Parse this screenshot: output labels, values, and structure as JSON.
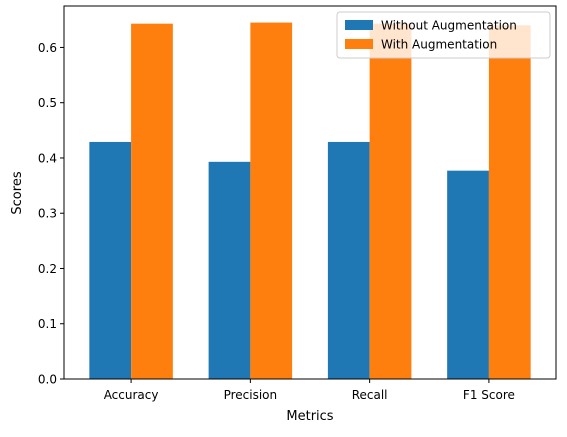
{
  "chart_data": {
    "type": "bar",
    "categories": [
      "Accuracy",
      "Precision",
      "Recall",
      "F1 Score"
    ],
    "series": [
      {
        "name": "Without Augmentation",
        "color": "#1f77b4",
        "values": [
          0.429,
          0.393,
          0.429,
          0.377
        ]
      },
      {
        "name": "With Augmentation",
        "color": "#ff7f0e",
        "values": [
          0.643,
          0.645,
          0.643,
          0.64
        ]
      }
    ],
    "xlabel": "Metrics",
    "ylabel": "Scores",
    "ylim": [
      0,
      0.675
    ],
    "yticks": [
      0.0,
      0.1,
      0.2,
      0.3,
      0.4,
      0.5,
      0.6
    ],
    "ytick_labels": [
      "0.0",
      "0.1",
      "0.2",
      "0.3",
      "0.4",
      "0.5",
      "0.6"
    ],
    "grid": false,
    "legend_position": "top-right"
  }
}
